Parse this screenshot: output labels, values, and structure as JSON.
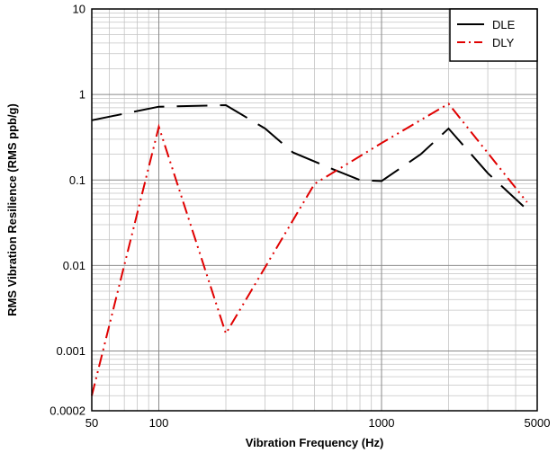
{
  "chart_data": {
    "type": "line",
    "title": "",
    "xlabel": "Vibration Frequency (Hz)",
    "ylabel": "RMS Vibration Resilience (RMS ppb/g)",
    "x_scale": "log",
    "y_scale": "log",
    "xlim": [
      50,
      5000
    ],
    "ylim": [
      0.0002,
      10
    ],
    "x_ticks": [
      {
        "value": 50,
        "label": "50"
      },
      {
        "value": 100,
        "label": "100"
      },
      {
        "value": 1000,
        "label": "1000"
      },
      {
        "value": 5000,
        "label": "5000"
      }
    ],
    "y_ticks": [
      {
        "value": 0.0002,
        "label": "0.0002"
      },
      {
        "value": 0.001,
        "label": "0.001"
      },
      {
        "value": 0.01,
        "label": "0.01"
      },
      {
        "value": 0.1,
        "label": "0.1"
      },
      {
        "value": 1,
        "label": "1"
      },
      {
        "value": 10,
        "label": "10"
      }
    ],
    "grid": true,
    "legend_position": "top-right",
    "series": [
      {
        "name": "DLE",
        "color": "#000000",
        "dash": "long-dash",
        "points": [
          {
            "x": 50,
            "y": 0.5
          },
          {
            "x": 100,
            "y": 0.72
          },
          {
            "x": 200,
            "y": 0.75
          },
          {
            "x": 300,
            "y": 0.4
          },
          {
            "x": 400,
            "y": 0.21
          },
          {
            "x": 600,
            "y": 0.135
          },
          {
            "x": 800,
            "y": 0.1
          },
          {
            "x": 1000,
            "y": 0.097
          },
          {
            "x": 1500,
            "y": 0.2
          },
          {
            "x": 2000,
            "y": 0.4
          },
          {
            "x": 3000,
            "y": 0.12
          },
          {
            "x": 4500,
            "y": 0.045
          }
        ]
      },
      {
        "name": "DLY",
        "color": "#e00000",
        "dash": "dash-dot-dot",
        "points": [
          {
            "x": 50,
            "y": 0.0003
          },
          {
            "x": 100,
            "y": 0.42
          },
          {
            "x": 200,
            "y": 0.0016
          },
          {
            "x": 500,
            "y": 0.09
          },
          {
            "x": 1000,
            "y": 0.27
          },
          {
            "x": 2000,
            "y": 0.78
          },
          {
            "x": 4500,
            "y": 0.055
          }
        ]
      }
    ]
  }
}
